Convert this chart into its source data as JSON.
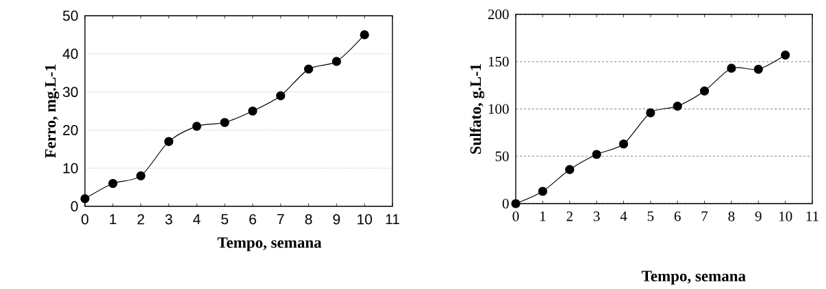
{
  "chart_data": [
    {
      "type": "line",
      "xlabel": "Tempo, semana",
      "ylabel": "Ferro, mg.L-1",
      "x": [
        0,
        1,
        2,
        3,
        4,
        5,
        6,
        7,
        8,
        9,
        10
      ],
      "values": [
        2,
        6,
        8,
        17,
        21,
        22,
        25,
        29,
        36,
        38,
        45
      ],
      "color": "#000000",
      "xlim": [
        0,
        11
      ],
      "xticks": [
        0,
        1,
        2,
        3,
        4,
        5,
        6,
        7,
        8,
        9,
        10,
        11
      ],
      "ylim": [
        0,
        50
      ],
      "yticks": [
        0,
        10,
        20,
        30,
        40,
        50
      ],
      "grid": "y",
      "marker": "circle",
      "line_style": "solid"
    },
    {
      "type": "line",
      "xlabel": "Tempo, semana",
      "ylabel": "Sulfato, g.L-1",
      "x": [
        0,
        1,
        2,
        3,
        4,
        5,
        6,
        7,
        8,
        9,
        10
      ],
      "values": [
        0,
        13,
        36,
        52,
        63,
        96,
        103,
        119,
        143,
        142,
        157
      ],
      "color": "#000000",
      "xlim": [
        0,
        11
      ],
      "xticks": [
        0,
        1,
        2,
        3,
        4,
        5,
        6,
        7,
        8,
        9,
        10,
        11
      ],
      "ylim": [
        0,
        200
      ],
      "yticks": [
        0,
        50,
        100,
        150,
        200
      ],
      "grid": "y",
      "marker": "circle",
      "line_style": "solid"
    }
  ]
}
